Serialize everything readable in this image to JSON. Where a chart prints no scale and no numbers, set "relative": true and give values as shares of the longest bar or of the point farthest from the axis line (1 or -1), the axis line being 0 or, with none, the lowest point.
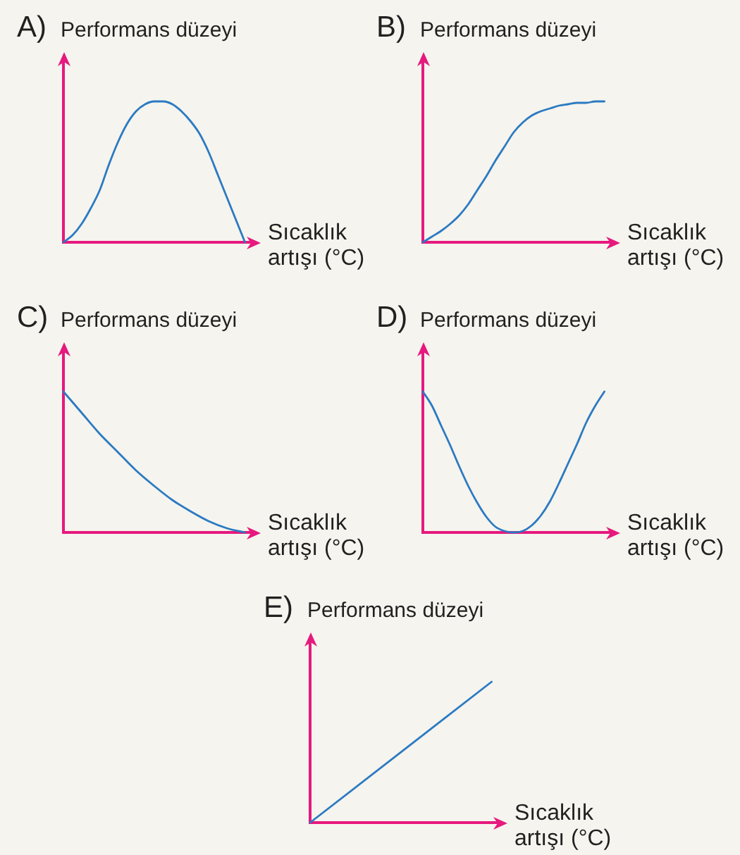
{
  "chart_data": [
    {
      "type": "line",
      "title": "A)",
      "ylabel": "Performans düzeyi",
      "xlabel": "Sıcaklık artışı (°C)",
      "relative": true,
      "categories": [
        null,
        null,
        null,
        null,
        null,
        null,
        null,
        null,
        null,
        null,
        null,
        null,
        null,
        null,
        null,
        null,
        null,
        null,
        null,
        null,
        null
      ],
      "color": "#2b7ac2",
      "values": [
        0,
        0.05,
        0.13,
        0.24,
        0.37,
        0.55,
        0.71,
        0.84,
        0.93,
        0.98,
        1,
        1,
        0.98,
        0.93,
        0.86,
        0.77,
        0.64,
        0.48,
        0.32,
        0.16,
        0
      ]
    },
    {
      "type": "line",
      "title": "B)",
      "ylabel": "Performans düzeyi",
      "xlabel": "Sıcaklık artışı (°C)",
      "relative": true,
      "categories": [
        null,
        null,
        null,
        null,
        null,
        null,
        null,
        null,
        null,
        null,
        null,
        null,
        null,
        null,
        null,
        null,
        null,
        null,
        null,
        null,
        null
      ],
      "color": "#2b7ac2",
      "values": [
        0,
        0.04,
        0.08,
        0.13,
        0.19,
        0.27,
        0.37,
        0.47,
        0.58,
        0.68,
        0.78,
        0.85,
        0.9,
        0.93,
        0.95,
        0.97,
        0.98,
        0.99,
        0.99,
        1,
        1
      ]
    },
    {
      "type": "line",
      "title": "C)",
      "ylabel": "Performans düzeyi",
      "xlabel": "Sıcaklık artışı (°C)",
      "relative": true,
      "categories": [
        null,
        null,
        null,
        null,
        null,
        null,
        null,
        null,
        null,
        null,
        null
      ],
      "color": "#2b7ac2",
      "values": [
        1,
        0.85,
        0.7,
        0.57,
        0.44,
        0.33,
        0.23,
        0.15,
        0.08,
        0.03,
        0
      ]
    },
    {
      "type": "line",
      "title": "D)",
      "ylabel": "Performans düzeyi",
      "xlabel": "Sıcaklık artışı (°C)",
      "relative": true,
      "categories": [
        null,
        null,
        null,
        null,
        null,
        null,
        null,
        null,
        null,
        null,
        null,
        null,
        null,
        null,
        null,
        null,
        null,
        null,
        null,
        null,
        null
      ],
      "color": "#2b7ac2",
      "values": [
        1,
        0.9,
        0.76,
        0.62,
        0.47,
        0.33,
        0.21,
        0.11,
        0.04,
        0.01,
        0,
        0.01,
        0.05,
        0.12,
        0.22,
        0.35,
        0.49,
        0.63,
        0.78,
        0.9,
        1
      ]
    },
    {
      "type": "line",
      "title": "E)",
      "ylabel": "Performans düzeyi",
      "xlabel": "Sıcaklık artışı (°C)",
      "relative": true,
      "categories": [
        null,
        null
      ],
      "color": "#2b7ac2",
      "values": [
        0,
        1
      ]
    }
  ]
}
